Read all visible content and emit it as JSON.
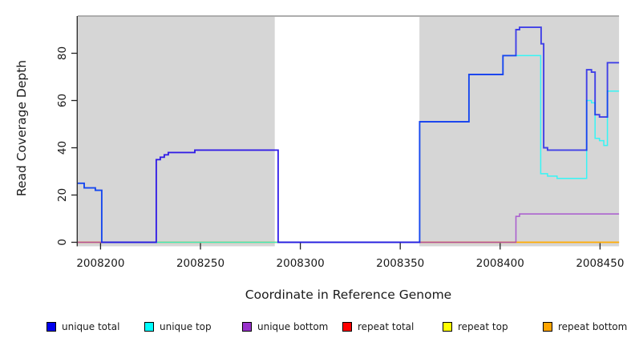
{
  "chart_data": {
    "type": "line",
    "step": true,
    "title": "",
    "xlabel": "Coordinate in Reference Genome",
    "ylabel": "Read Coverage Depth",
    "x_ticks": [
      2008200,
      2008250,
      2008300,
      2008350,
      2008400,
      2008450
    ],
    "y_ticks": [
      0,
      20,
      40,
      60,
      80
    ],
    "xlim": [
      2008188.6,
      2008459.5
    ],
    "ylim": [
      0,
      95.8
    ],
    "grid": false,
    "legend_position": "bottom",
    "background": {
      "plot_bg": "#d6d6d6",
      "uncovered_region": [
        2008287.2,
        2008359.6
      ],
      "top_border_color": "#9a9a9a",
      "axis_color": "#222222"
    },
    "series": [
      {
        "name": "repeat total",
        "color": "#FF0000",
        "opacity": 0.75,
        "width": 1.4,
        "points": [
          [
            2008188.6,
            0
          ],
          [
            2008459.5,
            0
          ]
        ]
      },
      {
        "name": "repeat top",
        "color": "#FFFF00",
        "opacity": 0.75,
        "width": 1.4,
        "points": [
          [
            2008188.6,
            0
          ],
          [
            2008459.5,
            0
          ]
        ]
      },
      {
        "name": "repeat bottom",
        "color": "#FFA500",
        "opacity": 0.75,
        "width": 1.4,
        "points": [
          [
            2008188.6,
            0
          ],
          [
            2008459.5,
            0
          ]
        ]
      },
      {
        "name": "unique top",
        "color": "#00FFFF",
        "opacity": 0.75,
        "width": 1.5,
        "points": [
          [
            2008188.6,
            25
          ],
          [
            2008191.8,
            23
          ],
          [
            2008197.4,
            22
          ],
          [
            2008200.6,
            0
          ],
          [
            2008359.7,
            51
          ],
          [
            2008384.4,
            71
          ],
          [
            2008401.4,
            79
          ],
          [
            2008420.3,
            29
          ],
          [
            2008423.7,
            28
          ],
          [
            2008428.5,
            27
          ],
          [
            2008443.3,
            60
          ],
          [
            2008445.7,
            59
          ],
          [
            2008447.5,
            44
          ],
          [
            2008449.7,
            43
          ],
          [
            2008451.9,
            41
          ],
          [
            2008453.7,
            64
          ],
          [
            2008459.5,
            64
          ]
        ]
      },
      {
        "name": "unique bottom",
        "color": "#9932CC",
        "opacity": 0.75,
        "width": 1.5,
        "points": [
          [
            2008188.6,
            0
          ],
          [
            2008227.9,
            35
          ],
          [
            2008229.9,
            36
          ],
          [
            2008231.9,
            37
          ],
          [
            2008233.9,
            38
          ],
          [
            2008247.2,
            39
          ],
          [
            2008288.9,
            0
          ],
          [
            2008407.9,
            11
          ],
          [
            2008409.7,
            12
          ],
          [
            2008459.5,
            12
          ]
        ]
      },
      {
        "name": "unique total",
        "color": "#0000EE",
        "opacity": 0.7,
        "width": 1.9,
        "points": [
          [
            2008188.6,
            25
          ],
          [
            2008191.8,
            23
          ],
          [
            2008197.4,
            22
          ],
          [
            2008200.6,
            0
          ],
          [
            2008227.9,
            35
          ],
          [
            2008229.9,
            36
          ],
          [
            2008231.9,
            37
          ],
          [
            2008233.9,
            38
          ],
          [
            2008247.2,
            39
          ],
          [
            2008288.9,
            0
          ],
          [
            2008359.7,
            51
          ],
          [
            2008384.4,
            71
          ],
          [
            2008401.4,
            79
          ],
          [
            2008407.9,
            90
          ],
          [
            2008409.7,
            91
          ],
          [
            2008420.5,
            84
          ],
          [
            2008421.8,
            40
          ],
          [
            2008423.7,
            39
          ],
          [
            2008443.3,
            73
          ],
          [
            2008445.7,
            72
          ],
          [
            2008447.5,
            54
          ],
          [
            2008449.7,
            53
          ],
          [
            2008453.7,
            76
          ],
          [
            2008459.5,
            76
          ]
        ]
      }
    ],
    "legend": [
      {
        "label": "unique total",
        "color": "#0000EE"
      },
      {
        "label": "unique top",
        "color": "#00FFFF"
      },
      {
        "label": "unique bottom",
        "color": "#9932CC"
      },
      {
        "label": "repeat total",
        "color": "#FF0000"
      },
      {
        "label": "repeat top",
        "color": "#FFFF00"
      },
      {
        "label": "repeat bottom",
        "color": "#FFA500"
      }
    ]
  }
}
